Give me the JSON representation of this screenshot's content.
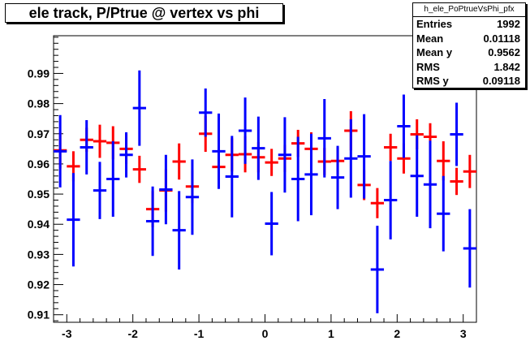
{
  "chart_data": {
    "type": "scatter",
    "title": "ele track, P/Ptrue @ vertex vs phi",
    "xlabel": "",
    "ylabel": "",
    "xlim": [
      -3.2,
      3.2
    ],
    "ylim": [
      0.9075,
      1.0025
    ],
    "x_ticks": [
      -3,
      -2,
      -1,
      0,
      1,
      2,
      3
    ],
    "y_ticks": [
      0.91,
      0.92,
      0.93,
      0.94,
      0.95,
      0.96,
      0.97,
      0.98,
      0.99
    ],
    "grid": false,
    "series": [
      {
        "color": "#ff0000",
        "x_half_width": 0.1,
        "points": [
          {
            "x": -3.1,
            "y": 0.9645,
            "err": 0.006
          },
          {
            "x": -2.9,
            "y": 0.9592,
            "err": 0.005
          },
          {
            "x": -2.7,
            "y": 0.968,
            "err": 0.004
          },
          {
            "x": -2.5,
            "y": 0.9675,
            "err": 0.0055
          },
          {
            "x": -2.3,
            "y": 0.967,
            "err": 0.0055
          },
          {
            "x": -2.1,
            "y": 0.965,
            "err": 0.005
          },
          {
            "x": -1.9,
            "y": 0.9582,
            "err": 0.0045
          },
          {
            "x": -1.7,
            "y": 0.945,
            "err": 0.006
          },
          {
            "x": -1.5,
            "y": 0.9512,
            "err": 0.007
          },
          {
            "x": -1.3,
            "y": 0.9608,
            "err": 0.006
          },
          {
            "x": -1.1,
            "y": 0.9525,
            "err": 0.0055
          },
          {
            "x": -0.9,
            "y": 0.97,
            "err": 0.006
          },
          {
            "x": -0.7,
            "y": 0.959,
            "err": 0.0045
          },
          {
            "x": -0.5,
            "y": 0.963,
            "err": 0.0055
          },
          {
            "x": -0.3,
            "y": 0.9632,
            "err": 0.006
          },
          {
            "x": -0.1,
            "y": 0.9622,
            "err": 0.005
          },
          {
            "x": 0.1,
            "y": 0.9605,
            "err": 0.0045
          },
          {
            "x": 0.3,
            "y": 0.9618,
            "err": 0.0045
          },
          {
            "x": 0.5,
            "y": 0.9668,
            "err": 0.0045
          },
          {
            "x": 0.7,
            "y": 0.965,
            "err": 0.0055
          },
          {
            "x": 0.9,
            "y": 0.9608,
            "err": 0.0045
          },
          {
            "x": 1.1,
            "y": 0.961,
            "err": 0.0045
          },
          {
            "x": 1.3,
            "y": 0.971,
            "err": 0.0065
          },
          {
            "x": 1.5,
            "y": 0.953,
            "err": 0.005
          },
          {
            "x": 1.7,
            "y": 0.947,
            "err": 0.005
          },
          {
            "x": 1.9,
            "y": 0.9655,
            "err": 0.0045
          },
          {
            "x": 2.1,
            "y": 0.9618,
            "err": 0.005
          },
          {
            "x": 2.3,
            "y": 0.9698,
            "err": 0.005
          },
          {
            "x": 2.5,
            "y": 0.969,
            "err": 0.0045
          },
          {
            "x": 2.7,
            "y": 0.961,
            "err": 0.0065
          },
          {
            "x": 2.9,
            "y": 0.9542,
            "err": 0.0045
          },
          {
            "x": 3.1,
            "y": 0.9575,
            "err": 0.0055
          }
        ]
      },
      {
        "color": "#0000ff",
        "x_half_width": 0.1,
        "points": [
          {
            "x": -3.1,
            "y": 0.9642,
            "err": 0.012
          },
          {
            "x": -2.9,
            "y": 0.9415,
            "err": 0.0155
          },
          {
            "x": -2.7,
            "y": 0.9655,
            "err": 0.009
          },
          {
            "x": -2.5,
            "y": 0.9512,
            "err": 0.0095
          },
          {
            "x": -2.3,
            "y": 0.955,
            "err": 0.0125
          },
          {
            "x": -2.1,
            "y": 0.963,
            "err": 0.0075
          },
          {
            "x": -1.9,
            "y": 0.9785,
            "err": 0.0125
          },
          {
            "x": -1.7,
            "y": 0.941,
            "err": 0.0115
          },
          {
            "x": -1.5,
            "y": 0.9515,
            "err": 0.0115
          },
          {
            "x": -1.3,
            "y": 0.938,
            "err": 0.013
          },
          {
            "x": -1.1,
            "y": 0.949,
            "err": 0.0125
          },
          {
            "x": -0.9,
            "y": 0.977,
            "err": 0.008
          },
          {
            "x": -0.7,
            "y": 0.9642,
            "err": 0.0125
          },
          {
            "x": -0.5,
            "y": 0.9558,
            "err": 0.0135
          },
          {
            "x": -0.3,
            "y": 0.971,
            "err": 0.011
          },
          {
            "x": -0.1,
            "y": 0.9652,
            "err": 0.0105
          },
          {
            "x": 0.1,
            "y": 0.9402,
            "err": 0.0105
          },
          {
            "x": 0.3,
            "y": 0.963,
            "err": 0.0125
          },
          {
            "x": 0.5,
            "y": 0.955,
            "err": 0.014
          },
          {
            "x": 0.7,
            "y": 0.9565,
            "err": 0.0135
          },
          {
            "x": 0.9,
            "y": 0.9685,
            "err": 0.013
          },
          {
            "x": 1.1,
            "y": 0.9555,
            "err": 0.0105
          },
          {
            "x": 1.3,
            "y": 0.9618,
            "err": 0.013
          },
          {
            "x": 1.5,
            "y": 0.9625,
            "err": 0.014
          },
          {
            "x": 1.7,
            "y": 0.925,
            "err": 0.0145
          },
          {
            "x": 1.9,
            "y": 0.948,
            "err": 0.013
          },
          {
            "x": 2.1,
            "y": 0.9725,
            "err": 0.0105
          },
          {
            "x": 2.3,
            "y": 0.956,
            "err": 0.0135
          },
          {
            "x": 2.5,
            "y": 0.9532,
            "err": 0.0145
          },
          {
            "x": 2.7,
            "y": 0.9435,
            "err": 0.0125
          },
          {
            "x": 2.9,
            "y": 0.9698,
            "err": 0.0105
          },
          {
            "x": 3.1,
            "y": 0.932,
            "err": 0.013
          }
        ]
      }
    ]
  },
  "stats_box": {
    "name": "h_ele_PoPtrueVsPhi_pfx",
    "rows": [
      {
        "label": "Entries",
        "value": "1992"
      },
      {
        "label": "Mean",
        "value": "0.01118"
      },
      {
        "label": "Mean y",
        "value": "0.9562"
      },
      {
        "label": "RMS",
        "value": "1.842"
      },
      {
        "label": "RMS y",
        "value": "0.09118"
      }
    ]
  }
}
